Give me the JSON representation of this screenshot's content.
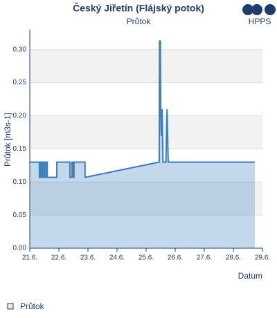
{
  "logo": "HPPS",
  "chart_data": {
    "type": "area",
    "title": "Český Jiřetín (Flájský potok)",
    "subtitle": "Průtok",
    "y_label": "Průtok [m3s-1]",
    "x_label": "Datum",
    "x": [
      21.0,
      21.33,
      21.33,
      21.36,
      21.36,
      21.4,
      21.4,
      21.45,
      21.45,
      21.5,
      21.5,
      21.55,
      21.55,
      21.6,
      21.6,
      21.93,
      21.93,
      22.38,
      22.38,
      22.45,
      22.45,
      22.5,
      22.5,
      22.52,
      22.52,
      22.9,
      22.9,
      25.45,
      25.46,
      25.49,
      25.5,
      25.52,
      25.55,
      25.58,
      25.6,
      25.68,
      25.72,
      25.76,
      25.8,
      28.74
    ],
    "series": [
      {
        "name": "Průtok",
        "color": "#3a7ebf",
        "values": [
          0.13,
          0.13,
          0.107,
          0.107,
          0.13,
          0.13,
          0.107,
          0.107,
          0.13,
          0.13,
          0.107,
          0.107,
          0.13,
          0.13,
          0.107,
          0.107,
          0.13,
          0.13,
          0.107,
          0.107,
          0.13,
          0.13,
          0.107,
          0.107,
          0.13,
          0.13,
          0.107,
          0.13,
          0.313,
          0.313,
          0.21,
          0.17,
          0.21,
          0.13,
          0.13,
          0.13,
          0.21,
          0.13,
          0.13,
          0.13
        ]
      }
    ],
    "xlim": [
      21,
      29
    ],
    "xticks": [
      {
        "value": 21,
        "label": "21.6."
      },
      {
        "value": 22,
        "label": "22.6."
      },
      {
        "value": 23,
        "label": "23.6."
      },
      {
        "value": 24,
        "label": "24.6."
      },
      {
        "value": 25,
        "label": "25.6."
      },
      {
        "value": 26,
        "label": "26.6."
      },
      {
        "value": 27,
        "label": "27.6."
      },
      {
        "value": 28,
        "label": "28.6."
      },
      {
        "value": 29,
        "label": "29.6."
      }
    ],
    "ylim": [
      0,
      0.33
    ],
    "yticks": [
      {
        "value": 0,
        "label": "0.00"
      },
      {
        "value": 0.05,
        "label": "0.05"
      },
      {
        "value": 0.1,
        "label": "0.10"
      },
      {
        "value": 0.15,
        "label": "0.15"
      },
      {
        "value": 0.2,
        "label": "0.20"
      },
      {
        "value": 0.25,
        "label": "0.25"
      },
      {
        "value": 0.3,
        "label": "0.30"
      }
    ],
    "grid": true
  }
}
